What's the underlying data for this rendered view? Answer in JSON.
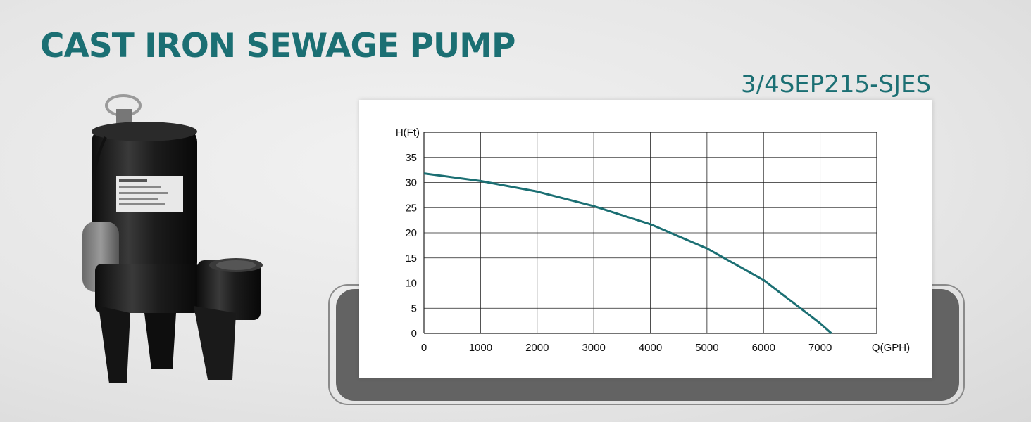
{
  "header": {
    "title": "CAST IRON SEWAGE PUMP",
    "model": "3/4SEP215-SJES"
  },
  "colors": {
    "accent": "#1b6f73",
    "curve": "#1b6f73"
  },
  "chart_data": {
    "type": "line",
    "title": "",
    "xlabel": "Q(GPH)",
    "ylabel": "H(Ft)",
    "xlim": [
      0,
      8000
    ],
    "ylim": [
      0,
      40
    ],
    "grid": true,
    "xticks": [
      0,
      1000,
      2000,
      3000,
      4000,
      5000,
      6000,
      7000
    ],
    "yticks": [
      0,
      5,
      10,
      15,
      20,
      25,
      30,
      35
    ],
    "series": [
      {
        "x": [
          0,
          1000,
          2000,
          3000,
          4000,
          5000,
          6000,
          7000,
          7200
        ],
        "y": [
          31.8,
          30.3,
          28.2,
          25.3,
          21.7,
          16.9,
          10.6,
          2.0,
          0
        ]
      }
    ]
  }
}
